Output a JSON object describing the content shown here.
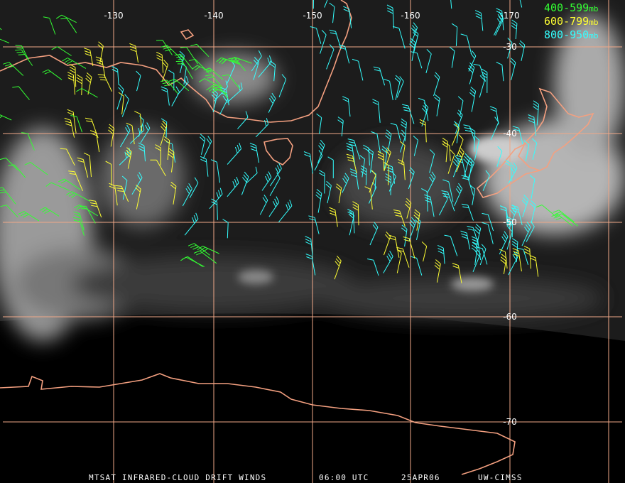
{
  "map": {
    "longitude_labels": [
      "-130",
      "-140",
      "-150",
      "-160",
      "-170"
    ],
    "latitude_labels": [
      "-30",
      "-40",
      "-50",
      "-60",
      "-70"
    ],
    "legend": [
      {
        "range": "400-599",
        "unit": "mb"
      },
      {
        "range": "600-799",
        "unit": "mb"
      },
      {
        "range": "800-950",
        "unit": "mb"
      }
    ],
    "caption": {
      "title": "MTSAT INFRARED-CLOUD DRIFT WINDS",
      "time": "06:00 UTC",
      "date": "25APR06",
      "source": "UW-CIMSS"
    }
  }
}
